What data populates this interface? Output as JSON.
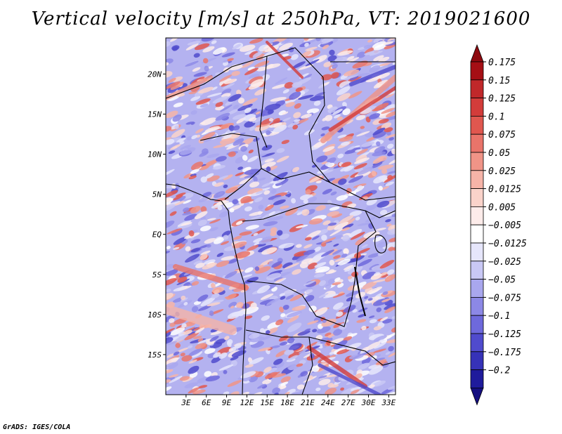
{
  "title": "Vertical velocity [m/s] at 250hPa, VT: 2019021600",
  "footer": "GrADS: IGES/COLA",
  "map": {
    "lon_range": [
      0,
      34
    ],
    "lat_range": [
      -20,
      24.5
    ],
    "lat_ticks": [
      {
        "value": 20,
        "label": "20N"
      },
      {
        "value": 15,
        "label": "15N"
      },
      {
        "value": 10,
        "label": "10N"
      },
      {
        "value": 5,
        "label": "5N"
      },
      {
        "value": 0,
        "label": "EQ"
      },
      {
        "value": -5,
        "label": "5S"
      },
      {
        "value": -10,
        "label": "10S"
      },
      {
        "value": -15,
        "label": "15S"
      }
    ],
    "lon_ticks": [
      {
        "value": 3,
        "label": "3E"
      },
      {
        "value": 6,
        "label": "6E"
      },
      {
        "value": 9,
        "label": "9E"
      },
      {
        "value": 12,
        "label": "12E"
      },
      {
        "value": 15,
        "label": "15E"
      },
      {
        "value": 18,
        "label": "18E"
      },
      {
        "value": 21,
        "label": "21E"
      },
      {
        "value": 24,
        "label": "24E"
      },
      {
        "value": 27,
        "label": "27E"
      },
      {
        "value": 30,
        "label": "30E"
      },
      {
        "value": 33,
        "label": "33E"
      }
    ]
  },
  "colorbar": {
    "levels": [
      {
        "label": "0.175",
        "color": "#a50f15"
      },
      {
        "label": "0.15",
        "color": "#c0282a"
      },
      {
        "label": "0.125",
        "color": "#d33c3a"
      },
      {
        "label": "0.1",
        "color": "#e0574f"
      },
      {
        "label": "0.075",
        "color": "#e9746a"
      },
      {
        "label": "0.05",
        "color": "#f09487"
      },
      {
        "label": "0.025",
        "color": "#f6b4a8"
      },
      {
        "label": "0.0125",
        "color": "#fad3ca"
      },
      {
        "label": "0.005",
        "color": "#fdecea"
      },
      {
        "label": "−0.005",
        "color": "#ffffff"
      },
      {
        "label": "−0.0125",
        "color": "#e6e6fb"
      },
      {
        "label": "−0.025",
        "color": "#c9c8f5"
      },
      {
        "label": "−0.05",
        "color": "#a9a7ee"
      },
      {
        "label": "−0.075",
        "color": "#8c88e6"
      },
      {
        "label": "−0.1",
        "color": "#6e69dc"
      },
      {
        "label": "−0.125",
        "color": "#504bcd"
      },
      {
        "label": "−0.175",
        "color": "#3632b8"
      },
      {
        "label": "−0.2",
        "color": "#1f1b9c"
      }
    ],
    "top_color": "#8e0a10",
    "bottom_color": "#150f80"
  }
}
